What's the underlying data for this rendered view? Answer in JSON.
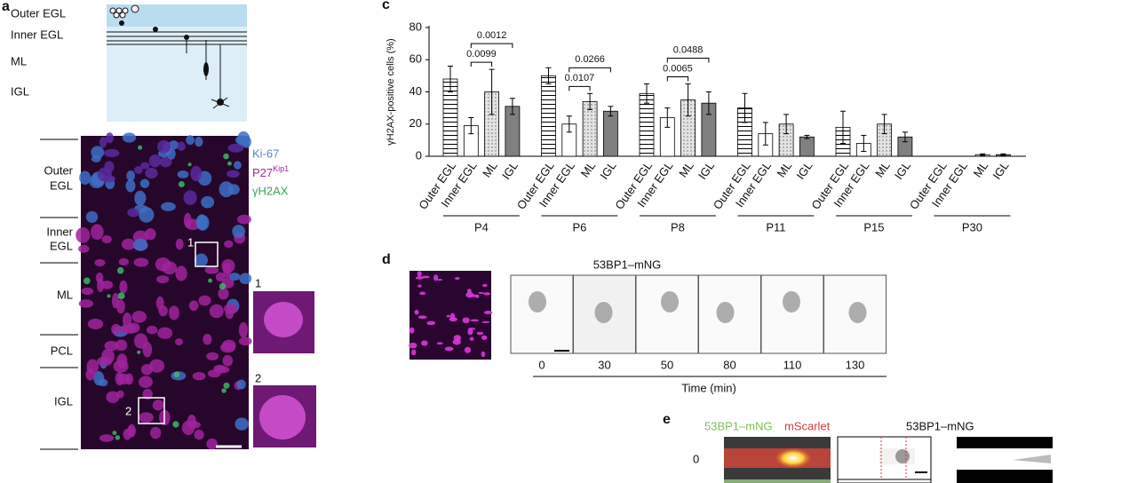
{
  "panel_a": {
    "letter": "a",
    "schematic_labels": [
      "Outer EGL",
      "Inner EGL",
      "ML",
      "IGL"
    ],
    "layers": [
      [
        "Outer",
        "EGL"
      ],
      [
        "Inner",
        "EGL"
      ],
      [
        "ML"
      ],
      [
        "PCL"
      ],
      [
        "IGL"
      ]
    ],
    "legend": {
      "ki67": "Ki-67",
      "p27": "P27",
      "p27_sup": "Kip1",
      "gh2ax": "γH2AX"
    },
    "boxes": [
      "1",
      "2"
    ],
    "insets": [
      "1",
      "2"
    ]
  },
  "chart_data": {
    "type": "grouped-bar",
    "letter": "c",
    "y_label": "γH2AX-positive cells (%)",
    "groups": [
      "P4",
      "P6",
      "P8",
      "P11",
      "P15",
      "P30"
    ],
    "series": [
      {
        "name": "Outer EGL",
        "color": "#ffffff",
        "pattern": "horizontal-stripes",
        "values": [
          48,
          50,
          39,
          30,
          18,
          0
        ],
        "errors": [
          8,
          5,
          6,
          9,
          10,
          0
        ]
      },
      {
        "name": "Inner EGL",
        "color": "#ffffff",
        "pattern": "none",
        "values": [
          19,
          20,
          24,
          14,
          8,
          0
        ],
        "errors": [
          5,
          5,
          6,
          7,
          5,
          0
        ]
      },
      {
        "name": "ML",
        "color": "#d9d9d9",
        "pattern": "dots",
        "values": [
          40,
          34,
          35,
          20,
          20,
          1
        ],
        "errors": [
          14,
          5,
          10,
          6,
          6,
          0.5
        ]
      },
      {
        "name": "IGL",
        "color": "#808080",
        "pattern": "none",
        "values": [
          31,
          28,
          33,
          12,
          12,
          1
        ],
        "errors": [
          5,
          3,
          7,
          1,
          3,
          0.5
        ]
      }
    ],
    "ylim": [
      0,
      80
    ],
    "yticks": [
      0,
      20,
      40,
      60,
      80
    ],
    "brackets": [
      {
        "group": 0,
        "from": 1,
        "to": 2,
        "label": "0.0099"
      },
      {
        "group": 0,
        "from": 1,
        "to": 3,
        "label": "0.0012"
      },
      {
        "group": 1,
        "from": 1,
        "to": 2,
        "label": "0.0107"
      },
      {
        "group": 1,
        "from": 1,
        "to": 3,
        "label": "0.0266"
      },
      {
        "group": 2,
        "from": 1,
        "to": 2,
        "label": "0.0065"
      },
      {
        "group": 2,
        "from": 1,
        "to": 3,
        "label": "0.0488"
      }
    ]
  },
  "panel_d": {
    "letter": "d",
    "title": "53BP1–mNG",
    "times": [
      "0",
      "30",
      "50",
      "80",
      "110",
      "130"
    ],
    "axis_label": "Time (min)"
  },
  "panel_e": {
    "letter": "e",
    "green_label": "53BP1–mNG",
    "red_label": "mScarlet",
    "title": "53BP1–mNG",
    "row_label": "0"
  }
}
